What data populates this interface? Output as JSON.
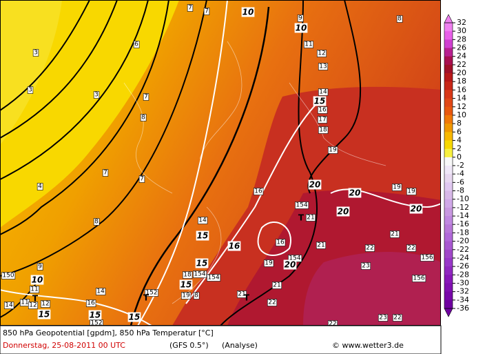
{
  "map": {
    "labels": [
      "6",
      "3",
      "3",
      "3",
      "4",
      "7",
      "7",
      "10",
      "9",
      "10",
      "8",
      "11",
      "12",
      "13",
      "7",
      "8",
      "7",
      "7",
      "14",
      "15",
      "16",
      "17",
      "18",
      "19",
      "16",
      "20",
      "20",
      "19",
      "19",
      "154",
      "T",
      "21",
      "20",
      "20",
      "8",
      "14",
      "15",
      "16",
      "16",
      "21",
      "21",
      "22",
      "22",
      "15",
      "19",
      "154",
      "20",
      "23",
      "156",
      "9",
      "150",
      "10",
      "18",
      "154",
      "154",
      "15",
      "156",
      "11",
      "14",
      "19",
      "8",
      "152",
      "21",
      "21",
      "T",
      "T",
      "T",
      "14",
      "11",
      "12",
      "12",
      "16",
      "22",
      "15",
      "15",
      "15",
      "152",
      "23",
      "22",
      "22"
    ]
  },
  "colorbar": {
    "ticks": [
      32,
      30,
      28,
      26,
      24,
      22,
      20,
      18,
      16,
      14,
      12,
      10,
      8,
      6,
      4,
      2,
      0,
      -2,
      -4,
      -6,
      -8,
      -10,
      -12,
      -14,
      -16,
      -18,
      -20,
      -22,
      -24,
      -26,
      -28,
      -30,
      -32,
      -34,
      -36
    ],
    "colors": [
      "#f080f0",
      "#e860e8",
      "#d040d0",
      "#b82090",
      "#a81050",
      "#a01028",
      "#b81818",
      "#c82818",
      "#d83818",
      "#e04818",
      "#e85810",
      "#f07808",
      "#f09800",
      "#f8b800",
      "#f8d800",
      "#f8f040",
      "#f8f8f8",
      "#f0e8f8",
      "#e8d8f0",
      "#e0c8f0",
      "#d8b8e8",
      "#d0a8e8",
      "#c898e0",
      "#c088e0",
      "#b878d8",
      "#b068d8",
      "#a858d0",
      "#a048c8",
      "#9838c8",
      "#9028c0",
      "#8818b8",
      "#8010b0",
      "#7808a8",
      "#7000a0"
    ]
  },
  "footer": {
    "title": "850 hPa Geopotential [gpdm], 850 hPa Temperatur [°C]",
    "date": "Donnerstag, 25-08-2011  00 UTC",
    "model": "(GFS 0.5°)",
    "run": "(Analyse)",
    "credit": "© www.wetter3.de"
  }
}
